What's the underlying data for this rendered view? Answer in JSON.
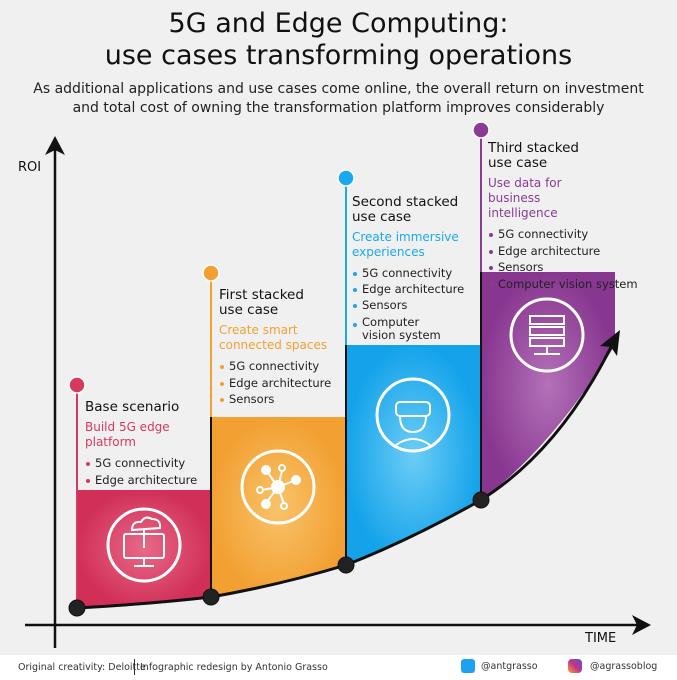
{
  "header": {
    "title_line1": "5G and Edge Computing:",
    "title_line2": "use cases transforming operations",
    "subtitle_line1": "As additional applications and use cases come online, the overall return on investment",
    "subtitle_line2": "and total cost of owning the transformation platform improves considerably"
  },
  "axes": {
    "y_label": "ROI",
    "x_label": "TIME"
  },
  "stages": [
    {
      "title": "Base scenario",
      "subtitle": "Build 5G edge platform",
      "color": "#d63a5e",
      "icon": "cloud-computer-icon",
      "items": [
        "5G connectivity",
        "Edge architecture"
      ]
    },
    {
      "title": "First stacked use case",
      "subtitle": "Create smart connected spaces",
      "color": "#f2a032",
      "icon": "network-hub-icon",
      "items": [
        "5G connectivity",
        "Edge architecture",
        "Sensors"
      ]
    },
    {
      "title": "Second stacked use case",
      "subtitle": "Create immersive experiences",
      "color": "#1aa9ec",
      "icon": "vr-headset-icon",
      "items": [
        "5G connectivity",
        "Edge architecture",
        "Sensors",
        "Computer vision system"
      ]
    },
    {
      "title": "Third stacked use case",
      "subtitle": "Use data for business intelligence",
      "color": "#8b3b93",
      "icon": "server-icon",
      "items": [
        "5G connectivity",
        "Edge architecture",
        "Sensors",
        "Computer vision system"
      ]
    }
  ],
  "footer": {
    "credit": "Original creativity: Deloitte",
    "redesign": "Infographic redesign by Antonio Grasso",
    "twitter": "@antgrasso",
    "instagram": "@agrassoblog"
  }
}
